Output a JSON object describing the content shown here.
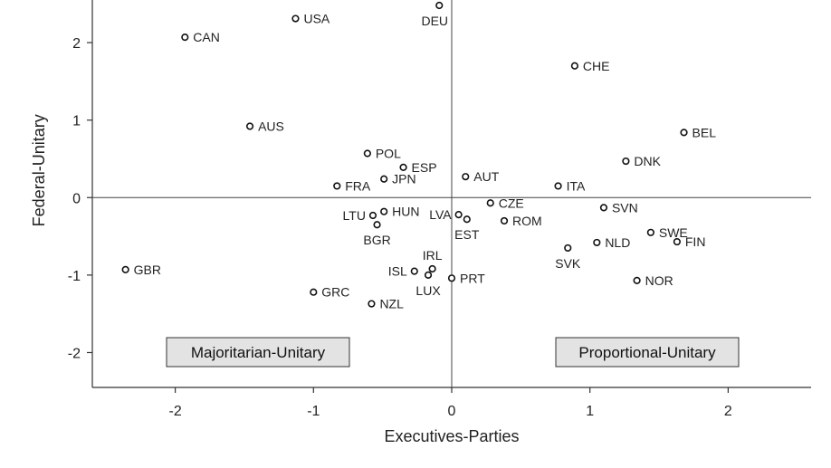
{
  "chart_data": {
    "type": "scatter",
    "xlabel": "Executives-Parties",
    "ylabel": "Federal-Unitary",
    "xlim": [
      -2.6,
      2.6
    ],
    "ylim": [
      -2.45,
      2.55
    ],
    "xticks": [
      -2,
      -1,
      0,
      1,
      2
    ],
    "yticks": [
      -2,
      -1,
      0,
      1,
      2
    ],
    "reference_lines": {
      "x": 0,
      "y": 0
    },
    "grid": false,
    "annotations": [
      {
        "text": "Majoritarian-Unitary",
        "position": "bottom-left"
      },
      {
        "text": "Proportional-Unitary",
        "position": "bottom-right"
      }
    ],
    "points": [
      {
        "label": "USA",
        "x": -1.13,
        "y": 2.31,
        "anchor": "right"
      },
      {
        "label": "DEU",
        "x": -0.09,
        "y": 2.48,
        "anchor": "below-left"
      },
      {
        "label": "CAN",
        "x": -1.93,
        "y": 2.07,
        "anchor": "right"
      },
      {
        "label": "CHE",
        "x": 0.89,
        "y": 1.7,
        "anchor": "right"
      },
      {
        "label": "AUS",
        "x": -1.46,
        "y": 0.92,
        "anchor": "right"
      },
      {
        "label": "BEL",
        "x": 1.68,
        "y": 0.84,
        "anchor": "right"
      },
      {
        "label": "DNK",
        "x": 1.26,
        "y": 0.47,
        "anchor": "right"
      },
      {
        "label": "POL",
        "x": -0.61,
        "y": 0.57,
        "anchor": "right"
      },
      {
        "label": "ESP",
        "x": -0.35,
        "y": 0.39,
        "anchor": "right"
      },
      {
        "label": "JPN",
        "x": -0.49,
        "y": 0.24,
        "anchor": "right"
      },
      {
        "label": "AUT",
        "x": 0.1,
        "y": 0.27,
        "anchor": "right"
      },
      {
        "label": "FRA",
        "x": -0.83,
        "y": 0.15,
        "anchor": "right"
      },
      {
        "label": "ITA",
        "x": 0.77,
        "y": 0.15,
        "anchor": "right"
      },
      {
        "label": "CZE",
        "x": 0.28,
        "y": -0.07,
        "anchor": "right"
      },
      {
        "label": "SVN",
        "x": 1.1,
        "y": -0.13,
        "anchor": "right"
      },
      {
        "label": "HUN",
        "x": -0.49,
        "y": -0.18,
        "anchor": "right"
      },
      {
        "label": "LTU",
        "x": -0.57,
        "y": -0.23,
        "anchor": "left"
      },
      {
        "label": "LVA",
        "x": 0.05,
        "y": -0.22,
        "anchor": "left"
      },
      {
        "label": "EST",
        "x": 0.11,
        "y": -0.28,
        "anchor": "below"
      },
      {
        "label": "ROM",
        "x": 0.38,
        "y": -0.3,
        "anchor": "right"
      },
      {
        "label": "BGR",
        "x": -0.54,
        "y": -0.35,
        "anchor": "below"
      },
      {
        "label": "SWE",
        "x": 1.44,
        "y": -0.45,
        "anchor": "right"
      },
      {
        "label": "FIN",
        "x": 1.63,
        "y": -0.57,
        "anchor": "right"
      },
      {
        "label": "NLD",
        "x": 1.05,
        "y": -0.58,
        "anchor": "right"
      },
      {
        "label": "SVK",
        "x": 0.84,
        "y": -0.65,
        "anchor": "below"
      },
      {
        "label": "GBR",
        "x": -2.36,
        "y": -0.93,
        "anchor": "right"
      },
      {
        "label": "IRL",
        "x": -0.14,
        "y": -0.92,
        "anchor": "above"
      },
      {
        "label": "ISL",
        "x": -0.27,
        "y": -0.95,
        "anchor": "left"
      },
      {
        "label": "LUX",
        "x": -0.17,
        "y": -1.0,
        "anchor": "below"
      },
      {
        "label": "PRT",
        "x": 0.0,
        "y": -1.04,
        "anchor": "right"
      },
      {
        "label": "NOR",
        "x": 1.34,
        "y": -1.07,
        "anchor": "right"
      },
      {
        "label": "GRC",
        "x": -1.0,
        "y": -1.22,
        "anchor": "right"
      },
      {
        "label": "NZL",
        "x": -0.58,
        "y": -1.37,
        "anchor": "right"
      }
    ]
  }
}
